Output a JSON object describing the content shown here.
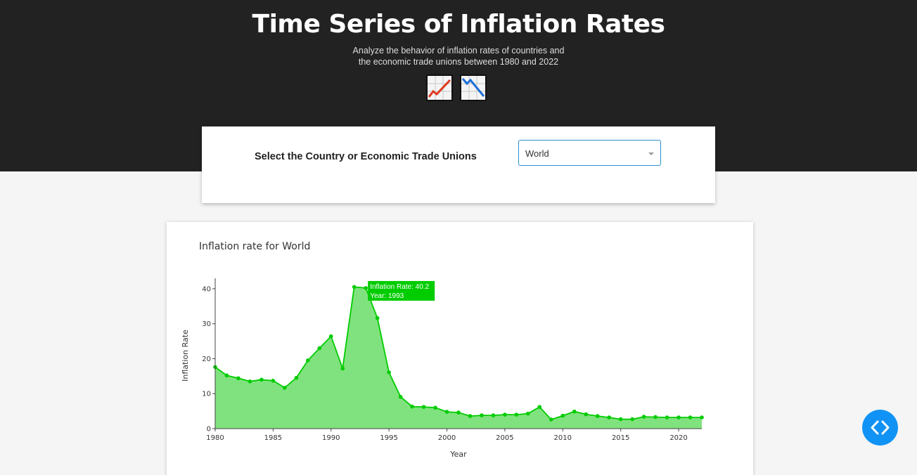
{
  "header": {
    "title": "Time Series of Inflation Rates",
    "subtitle_line1": "Analyze the behavior of inflation rates of countries and",
    "subtitle_line2": "the economic trade unions between 1980 and 2022",
    "icons": [
      "chart-increasing-icon",
      "chart-decreasing-icon"
    ]
  },
  "controls": {
    "label": "Select the Country or Economic Trade Unions",
    "dropdown_value": "World"
  },
  "colors": {
    "header_bg": "#222222",
    "line": "#00cc00",
    "fill": "#80e27e",
    "tooltip_bg": "#00cc00",
    "dropdown_border": "#2a8fd6",
    "code_button": "#1193f5"
  },
  "chart_data": {
    "type": "area",
    "title": "Inflation rate for World",
    "xlabel": "Year",
    "ylabel": "Inflation Rate",
    "xlim": [
      1980,
      2022
    ],
    "ylim": [
      0,
      43
    ],
    "x_ticks": [
      1980,
      1985,
      1990,
      1995,
      2000,
      2005,
      2010,
      2015,
      2020
    ],
    "y_ticks": [
      0,
      10,
      20,
      30,
      40
    ],
    "grid": false,
    "x": [
      1980,
      1981,
      1982,
      1983,
      1984,
      1985,
      1986,
      1987,
      1988,
      1989,
      1990,
      1991,
      1992,
      1993,
      1994,
      1995,
      1996,
      1997,
      1998,
      1999,
      2000,
      2001,
      2002,
      2003,
      2004,
      2005,
      2006,
      2007,
      2008,
      2009,
      2010,
      2011,
      2012,
      2013,
      2014,
      2015,
      2016,
      2017,
      2018,
      2019,
      2020,
      2021,
      2022
    ],
    "values": [
      17.6,
      15.2,
      14.4,
      13.5,
      14.0,
      13.7,
      11.7,
      14.5,
      19.5,
      23.0,
      26.4,
      17.2,
      40.5,
      40.2,
      31.6,
      16.1,
      9.1,
      6.3,
      6.2,
      6.0,
      4.8,
      4.6,
      3.6,
      3.8,
      3.8,
      4.0,
      4.0,
      4.3,
      6.2,
      2.6,
      3.7,
      4.9,
      4.1,
      3.6,
      3.2,
      2.7,
      2.7,
      3.4,
      3.3,
      3.2,
      3.2,
      3.2,
      3.2
    ],
    "tooltip": {
      "line1": "Inflation Rate: 40.2",
      "line2": "Year: 1993",
      "year": 1993,
      "value": 40.2
    }
  }
}
